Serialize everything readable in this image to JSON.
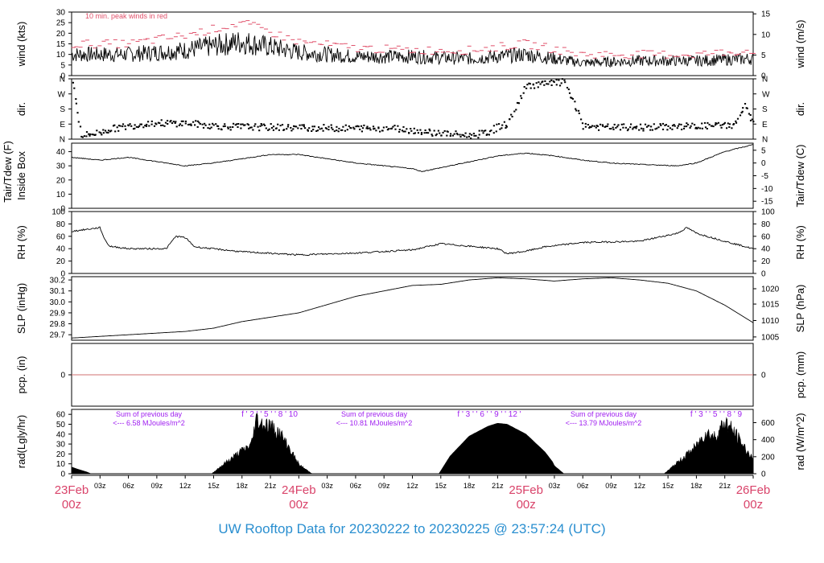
{
  "footer": {
    "title": "UW Rooftop Data for 20230222  to  20230225 @ 23:57:24  (UTC)"
  },
  "colors": {
    "peak": "#e0506a",
    "date": "#d9436a",
    "solar": "#a020f0",
    "title": "#2a8fd0",
    "zero_line": "#d07070",
    "ink": "#000000"
  },
  "chart_data": [
    {
      "id": "wind",
      "type": "line",
      "ylabel_left": "wind (kts)",
      "ylabel_right": "wind (m/s)",
      "ylim": [
        0,
        30
      ],
      "yticks_left": [
        0,
        5,
        10,
        15,
        20,
        25,
        30
      ],
      "right_ticks": [
        {
          "label": "0",
          "at": 0
        },
        {
          "label": "5",
          "at": 9.72
        },
        {
          "label": "10",
          "at": 19.44
        },
        {
          "label": "15",
          "at": 29.16
        }
      ],
      "annotation": "10 min. peak winds in red",
      "series": [
        {
          "role": "mean",
          "x": [
            0,
            6,
            12,
            18,
            24,
            30,
            36,
            42,
            48,
            54,
            60,
            66,
            72
          ],
          "y": [
            10,
            10,
            12,
            16,
            11,
            9,
            9,
            8,
            10,
            6,
            7,
            7,
            8
          ]
        },
        {
          "role": "peak",
          "x": [
            0,
            6,
            12,
            18,
            24,
            30,
            36,
            42,
            48,
            54,
            60,
            66,
            72
          ],
          "y": [
            15,
            15,
            19,
            25,
            16,
            13,
            12,
            12,
            15,
            10,
            10,
            10,
            12
          ]
        }
      ]
    },
    {
      "id": "dir",
      "type": "scatter",
      "ylabel_left": "dir.",
      "ylabel_right": "dir.",
      "ylim": [
        0,
        360
      ],
      "ytick_labels": [
        {
          "label": "N",
          "at": 0
        },
        {
          "label": "E",
          "at": 90
        },
        {
          "label": "S",
          "at": 180
        },
        {
          "label": "W",
          "at": 270
        },
        {
          "label": "N",
          "at": 360
        }
      ],
      "series": [
        {
          "x": [
            0,
            1,
            3,
            4,
            8,
            12,
            16,
            22,
            28,
            34,
            38,
            42,
            44,
            45,
            46,
            48,
            50,
            52,
            54,
            56,
            60,
            64,
            68,
            70,
            71,
            72
          ],
          "y": [
            340,
            20,
            40,
            60,
            95,
            95,
            75,
            70,
            65,
            65,
            40,
            20,
            40,
            75,
            90,
            320,
            330,
            340,
            80,
            70,
            70,
            75,
            80,
            85,
            200,
            90
          ]
        }
      ]
    },
    {
      "id": "temp",
      "type": "line",
      "ylabel_left": "Tair/Tdew (F)",
      "ylabel_left2": "Inside Box",
      "ylabel_right": "Tair/Tdew (C)",
      "ylim": [
        0,
        46
      ],
      "yticks_left": [
        0,
        10,
        20,
        30,
        40
      ],
      "right_ticks": [
        {
          "label": "-15",
          "at": 5
        },
        {
          "label": "-10",
          "at": 14
        },
        {
          "label": "-5",
          "at": 23
        },
        {
          "label": "0",
          "at": 32
        },
        {
          "label": "5",
          "at": 41
        }
      ],
      "series": [
        {
          "x": [
            0,
            3,
            6,
            9,
            12,
            15,
            18,
            21,
            24,
            27,
            30,
            33,
            36,
            37,
            40,
            45,
            48,
            51,
            54,
            57,
            60,
            64,
            66,
            69,
            72
          ],
          "y": [
            36,
            34,
            36,
            33,
            30,
            32,
            35,
            38,
            38,
            35,
            32,
            30,
            28,
            26,
            30,
            37,
            39,
            37,
            34,
            32,
            31,
            30,
            32,
            40,
            45
          ]
        }
      ]
    },
    {
      "id": "rh",
      "type": "line",
      "ylabel_left": "RH (%)",
      "ylabel_right": "RH (%)",
      "ylim": [
        0,
        100
      ],
      "yticks_left": [
        0,
        20,
        40,
        60,
        80,
        100
      ],
      "right_ticks": [
        {
          "label": "0",
          "at": 0
        },
        {
          "label": "20",
          "at": 20
        },
        {
          "label": "40",
          "at": 40
        },
        {
          "label": "60",
          "at": 60
        },
        {
          "label": "80",
          "at": 80
        },
        {
          "label": "100",
          "at": 100
        }
      ],
      "series": [
        {
          "x": [
            0,
            3,
            3.5,
            4,
            6,
            10,
            11,
            12,
            13,
            18,
            24,
            30,
            36,
            39,
            45,
            46,
            48,
            50,
            54,
            60,
            64,
            65,
            66,
            69,
            72
          ],
          "y": [
            68,
            74,
            55,
            44,
            40,
            40,
            60,
            58,
            43,
            35,
            30,
            33,
            38,
            48,
            40,
            32,
            36,
            43,
            50,
            52,
            65,
            74,
            65,
            52,
            40
          ]
        }
      ]
    },
    {
      "id": "slp",
      "type": "line",
      "ylabel_left": "SLP (inHg)",
      "ylabel_right": "SLP (hPa)",
      "ylim": [
        29.65,
        30.23
      ],
      "yticks_left": [
        29.7,
        29.8,
        29.9,
        30.0,
        30.1,
        30.2
      ],
      "right_ticks": [
        {
          "label": "1005",
          "at": 29.68
        },
        {
          "label": "1010",
          "at": 29.83
        },
        {
          "label": "1015",
          "at": 29.98
        },
        {
          "label": "1020",
          "at": 30.12
        }
      ],
      "series": [
        {
          "x": [
            0,
            6,
            12,
            15,
            18,
            24,
            30,
            36,
            39,
            42,
            45,
            48,
            51,
            54,
            57,
            60,
            63,
            66,
            69,
            72
          ],
          "y": [
            29.67,
            29.7,
            29.73,
            29.76,
            29.82,
            29.9,
            30.05,
            30.15,
            30.16,
            30.2,
            30.22,
            30.21,
            30.19,
            30.21,
            30.22,
            30.2,
            30.17,
            30.1,
            29.97,
            29.81
          ]
        }
      ]
    },
    {
      "id": "pcp",
      "type": "line",
      "ylabel_left": "pcp. (in)",
      "ylabel_right": "pcp. (mm)",
      "ylim": [
        -1,
        1
      ],
      "yticks_left": [
        0
      ],
      "right_ticks": [
        {
          "label": "0",
          "at": 0
        }
      ],
      "series": [
        {
          "x": [
            0,
            72
          ],
          "y": [
            0,
            0
          ]
        }
      ]
    },
    {
      "id": "rad",
      "type": "area",
      "ylabel_left": "rad(Lgly/hr)",
      "ylabel_right": "rad (W/m^2)",
      "ylim": [
        0,
        65
      ],
      "yticks_left": [
        0,
        10,
        20,
        30,
        40,
        50,
        60
      ],
      "right_ticks": [
        {
          "label": "0",
          "at": 0
        },
        {
          "label": "200",
          "at": 17.2
        },
        {
          "label": "400",
          "at": 34.4
        },
        {
          "label": "600",
          "at": 51.6
        }
      ],
      "days": [
        {
          "x": [
            14.8,
            16,
            18,
            19,
            19.5,
            20,
            21,
            22,
            23,
            24,
            25.4
          ],
          "y": [
            0,
            10,
            25,
            32,
            60,
            55,
            52,
            44,
            28,
            10,
            0
          ]
        },
        {
          "x": [
            38.8,
            40,
            42,
            44,
            45,
            46,
            48,
            50,
            51,
            52,
            50.8
          ],
          "y": [
            0,
            18,
            38,
            48,
            51,
            50,
            40,
            22,
            8,
            0,
            12
          ]
        },
        {
          "x": [
            62.6,
            64,
            66,
            67,
            68,
            69,
            70,
            71,
            72
          ],
          "y": [
            0,
            12,
            30,
            45,
            40,
            57,
            45,
            30,
            15
          ]
        }
      ],
      "notes": [
        {
          "line1": "Sum of previous day",
          "line2": "<--- 6.58 MJoules/m^2"
        },
        {
          "line1": "Sum of previous day",
          "line2": "<--- 10.81 MJoules/m^2"
        },
        {
          "line1": "Sum of previous day",
          "line2": "<--- 13.79 MJoules/m^2"
        }
      ],
      "hour_marks": [
        "f ' 2 ' ' 5 ' ' 8 ' 10",
        "f ' 3 ' ' 6 ' ' 9 ' ' 12 '",
        "f ' 3 ' ' 5 ' ' 8 ' 9"
      ]
    }
  ],
  "x_axis": {
    "range_hours": [
      0,
      72
    ],
    "tick_labels": [
      "03z",
      "06z",
      "09z",
      "12z",
      "15z",
      "18z",
      "21z",
      "03z",
      "06z",
      "09z",
      "12z",
      "15z",
      "18z",
      "21z",
      "03z",
      "06z",
      "09z",
      "12z",
      "15z",
      "18z",
      "21z"
    ],
    "date_labels": [
      {
        "line1": "23Feb",
        "line2": "00z"
      },
      {
        "line1": "24Feb",
        "line2": "00z"
      },
      {
        "line1": "25Feb",
        "line2": "00z"
      },
      {
        "line1": "26Feb",
        "line2": "00z"
      }
    ]
  }
}
